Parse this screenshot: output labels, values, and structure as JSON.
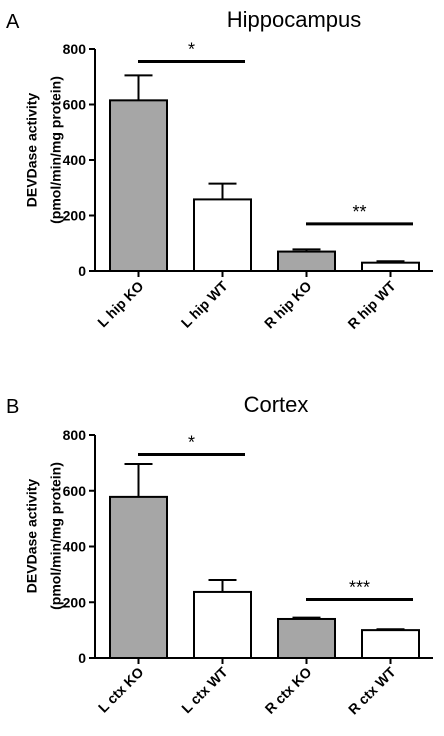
{
  "chart_data": [
    {
      "type": "bar",
      "panel_label": "A",
      "title": "Hippocampus",
      "ylabel_line1": "DEVDase activity",
      "ylabel_line2": "(pmol/min/mg protein)",
      "ylim": [
        0,
        800
      ],
      "yticks": [
        0,
        200,
        400,
        600,
        800
      ],
      "categories": [
        "L hip KO",
        "L hip WT",
        "R hip KO",
        "R hip WT"
      ],
      "values": [
        615,
        258,
        70,
        30
      ],
      "errors": [
        90,
        57,
        8,
        5
      ],
      "bar_colors": [
        "#a6a6a6",
        "#ffffff",
        "#a6a6a6",
        "#ffffff"
      ],
      "annotations": [
        {
          "text": "*",
          "from": 0,
          "to": 1,
          "y": 755
        },
        {
          "text": "**",
          "from": 2,
          "to": 3,
          "y": 170
        }
      ]
    },
    {
      "type": "bar",
      "panel_label": "B",
      "title": "Cortex",
      "ylabel_line1": "DEVDase activity",
      "ylabel_line2": "(pmol/min/mg protein)",
      "ylim": [
        0,
        800
      ],
      "yticks": [
        0,
        200,
        400,
        600,
        800
      ],
      "categories": [
        "L ctx KO",
        "L ctx WT",
        "R ctx KO",
        "R ctx WT"
      ],
      "values": [
        578,
        237,
        140,
        100
      ],
      "errors": [
        118,
        43,
        5,
        3
      ],
      "bar_colors": [
        "#a6a6a6",
        "#ffffff",
        "#a6a6a6",
        "#ffffff"
      ],
      "annotations": [
        {
          "text": "*",
          "from": 0,
          "to": 1,
          "y": 730
        },
        {
          "text": "***",
          "from": 2,
          "to": 3,
          "y": 210
        }
      ]
    }
  ]
}
